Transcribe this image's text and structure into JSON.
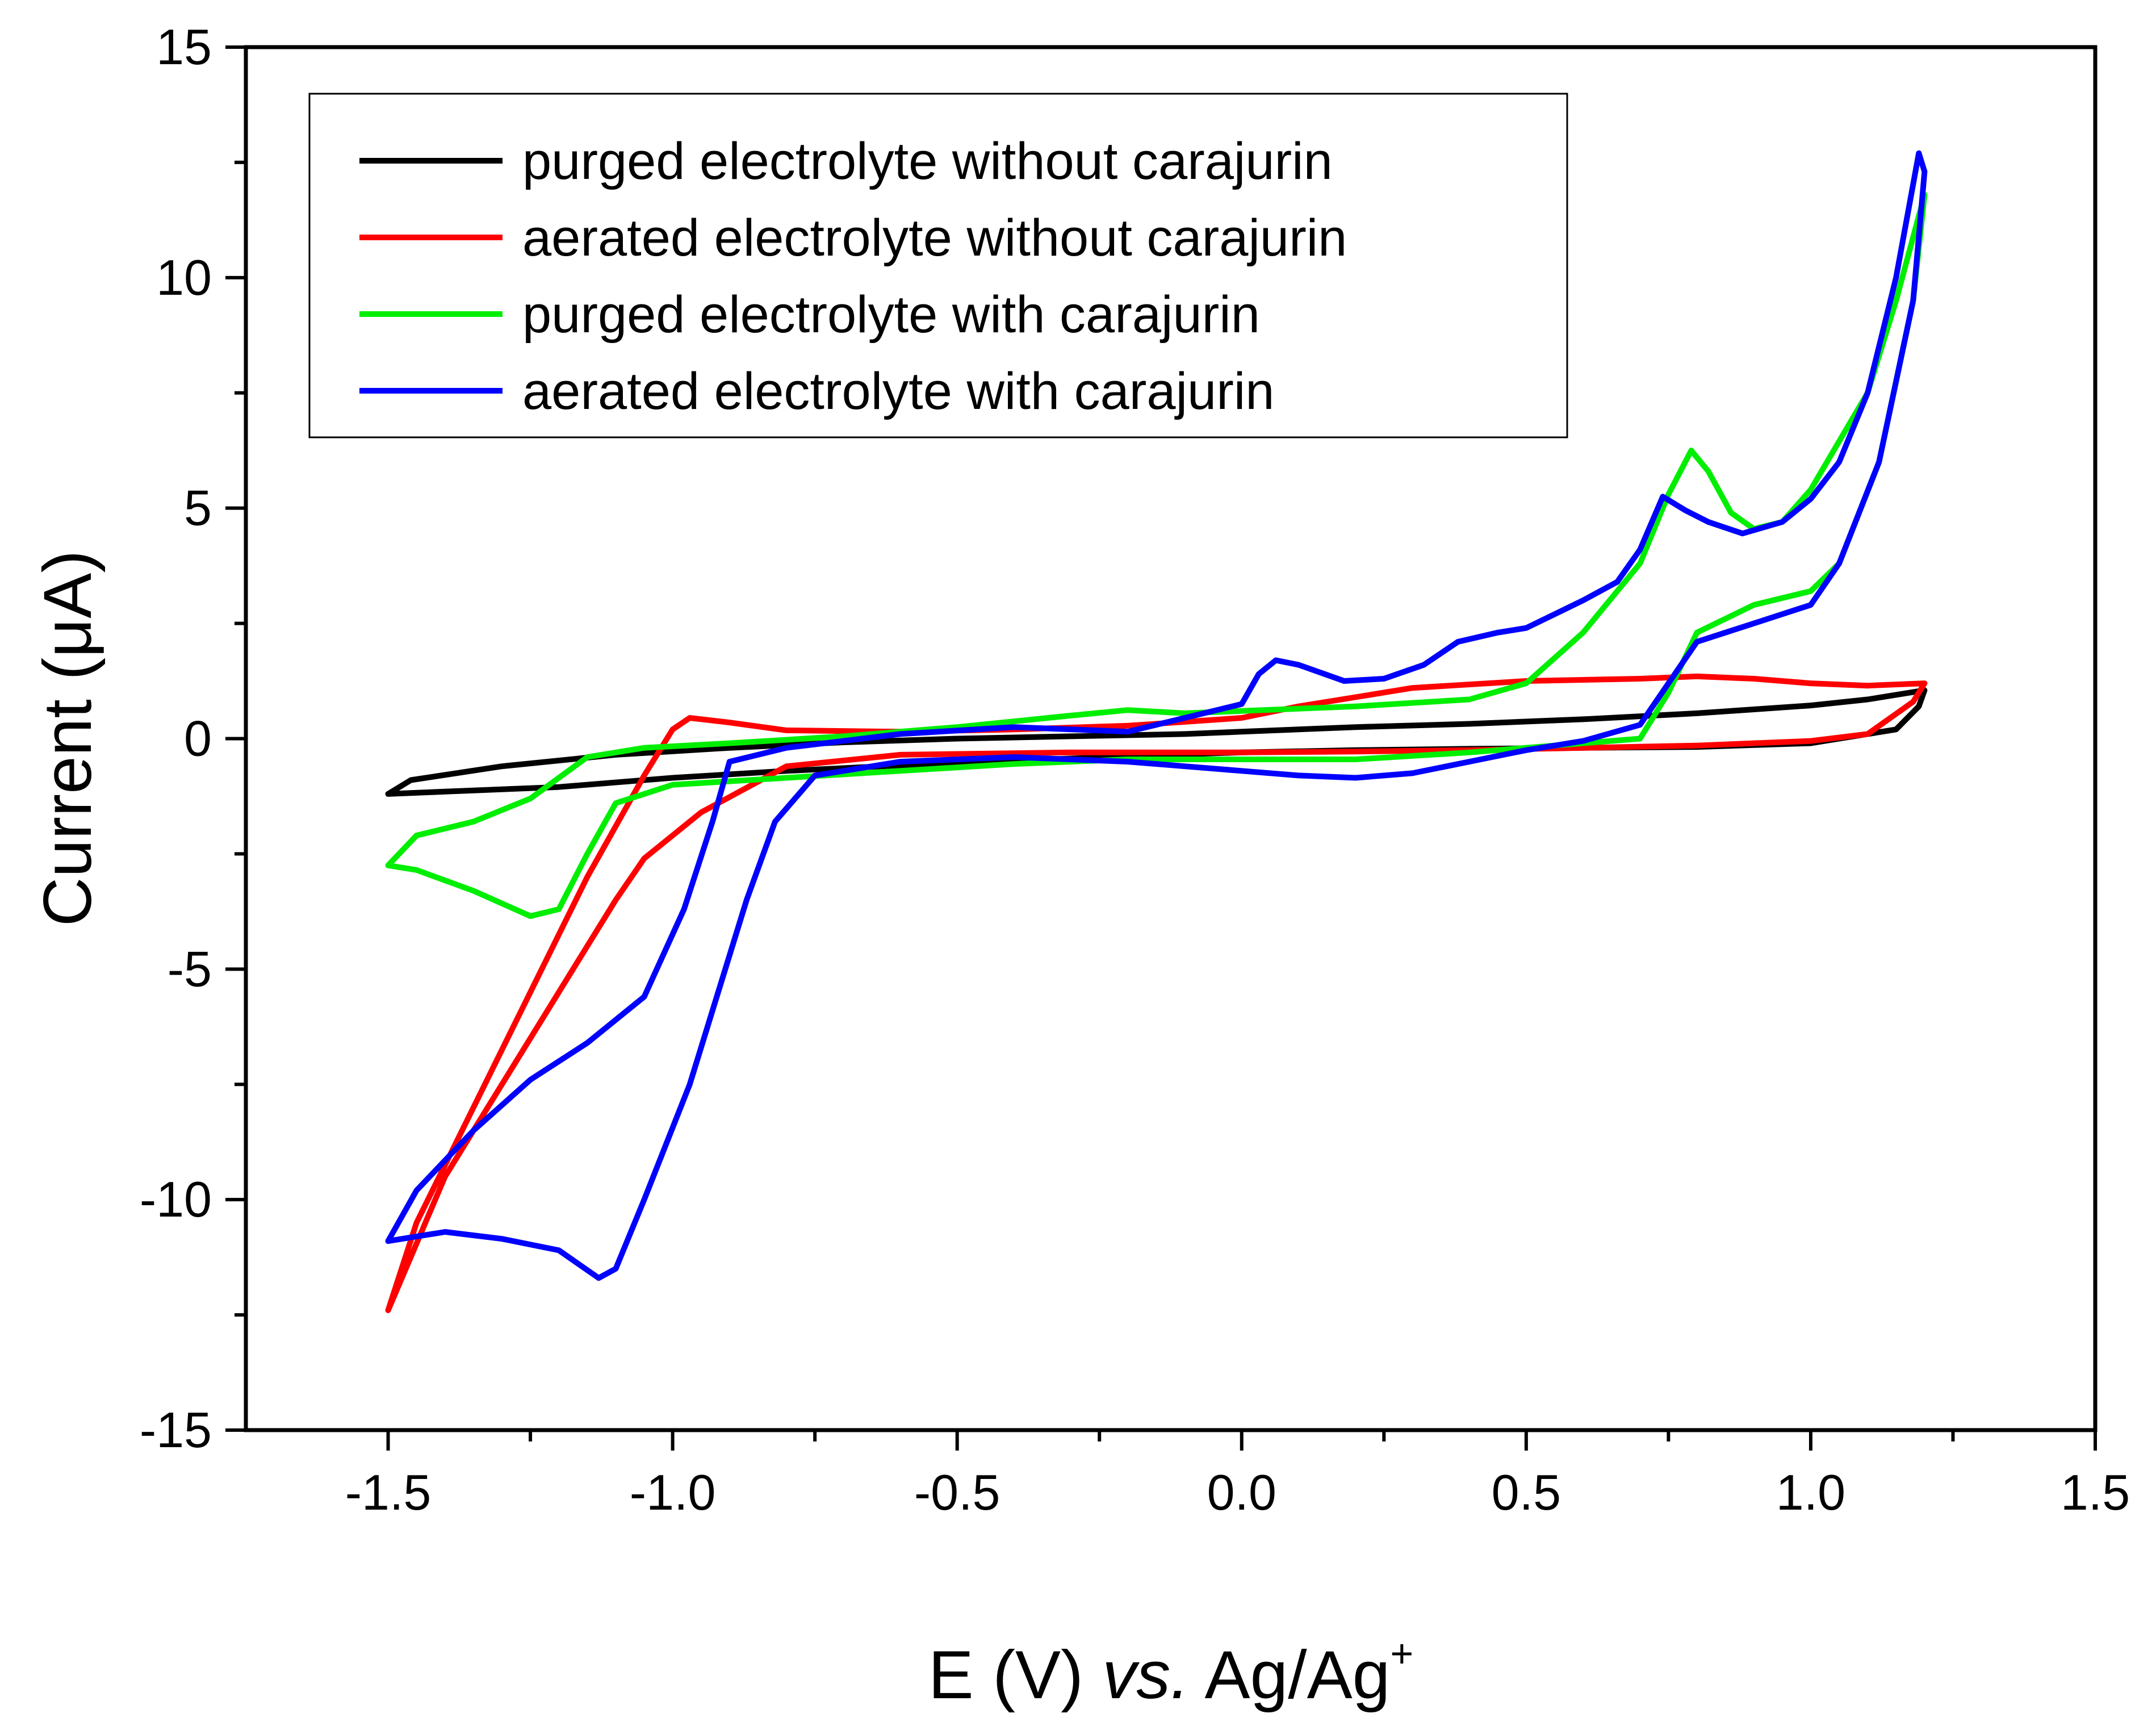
{
  "chart_data": {
    "type": "line",
    "xlabel": {
      "main": "E (V) ",
      "italic": "vs.",
      "tail": " Ag/Ag",
      "sup": "+"
    },
    "ylabel": "Current (μA)",
    "xlim": [
      -1.75,
      1.5
    ],
    "ylim": [
      -15,
      15
    ],
    "x_ticks": [
      -1.5,
      -1.0,
      -0.5,
      0.0,
      0.5,
      1.0,
      1.5
    ],
    "x_tick_labels": [
      "-1.5",
      "-1.0",
      "-0.5",
      "0.0",
      "0.5",
      "1.0",
      "1.5"
    ],
    "y_ticks": [
      -15,
      -10,
      -5,
      0,
      5,
      10,
      15
    ],
    "y_tick_labels": [
      "-15",
      "-10",
      "-5",
      "0",
      "5",
      "10",
      "15"
    ],
    "x_minor_step": 0.25,
    "y_minor_step": 2.5,
    "grid": false,
    "legend_position": "top-left",
    "series": [
      {
        "name": "purged electrolyte without carajurin",
        "color": "#000000",
        "points": [
          [
            0.0,
            0.15
          ],
          [
            0.2,
            0.25
          ],
          [
            0.4,
            0.32
          ],
          [
            0.6,
            0.42
          ],
          [
            0.8,
            0.55
          ],
          [
            1.0,
            0.72
          ],
          [
            1.1,
            0.85
          ],
          [
            1.2,
            1.05
          ],
          [
            1.19,
            0.7
          ],
          [
            1.15,
            0.2
          ],
          [
            1.0,
            -0.1
          ],
          [
            0.8,
            -0.18
          ],
          [
            0.6,
            -0.2
          ],
          [
            0.4,
            -0.22
          ],
          [
            0.2,
            -0.25
          ],
          [
            0.0,
            -0.3
          ],
          [
            -0.2,
            -0.38
          ],
          [
            -0.4,
            -0.48
          ],
          [
            -0.6,
            -0.58
          ],
          [
            -0.8,
            -0.7
          ],
          [
            -1.0,
            -0.85
          ],
          [
            -1.2,
            -1.05
          ],
          [
            -1.4,
            -1.15
          ],
          [
            -1.5,
            -1.2
          ],
          [
            -1.46,
            -0.9
          ],
          [
            -1.3,
            -0.6
          ],
          [
            -1.1,
            -0.35
          ],
          [
            -0.9,
            -0.2
          ],
          [
            -0.7,
            -0.08
          ],
          [
            -0.5,
            0.0
          ],
          [
            -0.3,
            0.05
          ],
          [
            -0.1,
            0.1
          ],
          [
            0.0,
            0.15
          ]
        ]
      },
      {
        "name": "aerated electrolyte without carajurin",
        "color": "#ff0000",
        "points": [
          [
            0.0,
            0.45
          ],
          [
            0.1,
            0.7
          ],
          [
            0.2,
            0.9
          ],
          [
            0.3,
            1.1
          ],
          [
            0.5,
            1.25
          ],
          [
            0.7,
            1.3
          ],
          [
            0.8,
            1.35
          ],
          [
            0.9,
            1.3
          ],
          [
            1.0,
            1.2
          ],
          [
            1.1,
            1.15
          ],
          [
            1.2,
            1.2
          ],
          [
            1.18,
            0.8
          ],
          [
            1.1,
            0.1
          ],
          [
            1.0,
            -0.05
          ],
          [
            0.8,
            -0.15
          ],
          [
            0.6,
            -0.2
          ],
          [
            0.4,
            -0.25
          ],
          [
            0.2,
            -0.28
          ],
          [
            0.0,
            -0.3
          ],
          [
            -0.3,
            -0.3
          ],
          [
            -0.6,
            -0.35
          ],
          [
            -0.8,
            -0.6
          ],
          [
            -0.95,
            -1.6
          ],
          [
            -1.05,
            -2.6
          ],
          [
            -1.1,
            -3.5
          ],
          [
            -1.2,
            -5.5
          ],
          [
            -1.3,
            -7.5
          ],
          [
            -1.4,
            -9.5
          ],
          [
            -1.5,
            -12.4
          ],
          [
            -1.45,
            -10.5
          ],
          [
            -1.35,
            -8.0
          ],
          [
            -1.25,
            -5.5
          ],
          [
            -1.15,
            -3.0
          ],
          [
            -1.05,
            -0.8
          ],
          [
            -1.0,
            0.2
          ],
          [
            -0.97,
            0.45
          ],
          [
            -0.9,
            0.35
          ],
          [
            -0.8,
            0.18
          ],
          [
            -0.6,
            0.15
          ],
          [
            -0.4,
            0.2
          ],
          [
            -0.2,
            0.28
          ],
          [
            0.0,
            0.45
          ]
        ]
      },
      {
        "name": "purged electrolyte with carajurin",
        "color": "#00ee00",
        "points": [
          [
            0.0,
            0.6
          ],
          [
            0.2,
            0.7
          ],
          [
            0.4,
            0.85
          ],
          [
            0.5,
            1.2
          ],
          [
            0.6,
            2.3
          ],
          [
            0.7,
            3.8
          ],
          [
            0.75,
            5.3
          ],
          [
            0.79,
            6.25
          ],
          [
            0.82,
            5.8
          ],
          [
            0.86,
            4.9
          ],
          [
            0.9,
            4.55
          ],
          [
            0.95,
            4.7
          ],
          [
            1.0,
            5.4
          ],
          [
            1.1,
            7.5
          ],
          [
            1.15,
            9.5
          ],
          [
            1.2,
            11.8
          ],
          [
            1.18,
            9.5
          ],
          [
            1.12,
            6.0
          ],
          [
            1.05,
            3.8
          ],
          [
            1.0,
            3.2
          ],
          [
            0.9,
            2.9
          ],
          [
            0.8,
            2.3
          ],
          [
            0.75,
            1.0
          ],
          [
            0.7,
            0.0
          ],
          [
            0.6,
            -0.1
          ],
          [
            0.4,
            -0.3
          ],
          [
            0.2,
            -0.45
          ],
          [
            0.0,
            -0.45
          ],
          [
            -0.2,
            -0.45
          ],
          [
            -0.4,
            -0.55
          ],
          [
            -0.6,
            -0.7
          ],
          [
            -0.8,
            -0.85
          ],
          [
            -1.0,
            -1.0
          ],
          [
            -1.1,
            -1.4
          ],
          [
            -1.15,
            -2.5
          ],
          [
            -1.2,
            -3.7
          ],
          [
            -1.25,
            -3.85
          ],
          [
            -1.35,
            -3.3
          ],
          [
            -1.45,
            -2.85
          ],
          [
            -1.5,
            -2.75
          ],
          [
            -1.45,
            -2.1
          ],
          [
            -1.35,
            -1.8
          ],
          [
            -1.25,
            -1.3
          ],
          [
            -1.15,
            -0.4
          ],
          [
            -1.05,
            -0.2
          ],
          [
            -0.9,
            -0.1
          ],
          [
            -0.7,
            0.05
          ],
          [
            -0.5,
            0.25
          ],
          [
            -0.3,
            0.5
          ],
          [
            -0.2,
            0.62
          ],
          [
            -0.1,
            0.55
          ],
          [
            0.0,
            0.6
          ]
        ]
      },
      {
        "name": "aerated electrolyte with carajurin",
        "color": "#0000ff",
        "points": [
          [
            0.0,
            0.75
          ],
          [
            0.03,
            1.4
          ],
          [
            0.06,
            1.7
          ],
          [
            0.1,
            1.6
          ],
          [
            0.18,
            1.25
          ],
          [
            0.25,
            1.3
          ],
          [
            0.32,
            1.6
          ],
          [
            0.38,
            2.1
          ],
          [
            0.45,
            2.3
          ],
          [
            0.5,
            2.4
          ],
          [
            0.55,
            2.7
          ],
          [
            0.6,
            3.0
          ],
          [
            0.66,
            3.4
          ],
          [
            0.7,
            4.1
          ],
          [
            0.74,
            5.25
          ],
          [
            0.78,
            4.95
          ],
          [
            0.82,
            4.7
          ],
          [
            0.88,
            4.45
          ],
          [
            0.95,
            4.7
          ],
          [
            1.0,
            5.2
          ],
          [
            1.05,
            6.0
          ],
          [
            1.1,
            7.5
          ],
          [
            1.15,
            10.0
          ],
          [
            1.19,
            12.7
          ],
          [
            1.2,
            12.3
          ],
          [
            1.18,
            9.5
          ],
          [
            1.12,
            6.0
          ],
          [
            1.05,
            3.8
          ],
          [
            1.0,
            2.9
          ],
          [
            0.9,
            2.5
          ],
          [
            0.8,
            2.1
          ],
          [
            0.75,
            1.2
          ],
          [
            0.7,
            0.3
          ],
          [
            0.6,
            -0.05
          ],
          [
            0.5,
            -0.25
          ],
          [
            0.4,
            -0.5
          ],
          [
            0.3,
            -0.75
          ],
          [
            0.2,
            -0.85
          ],
          [
            0.1,
            -0.8
          ],
          [
            0.0,
            -0.7
          ],
          [
            -0.2,
            -0.5
          ],
          [
            -0.4,
            -0.4
          ],
          [
            -0.6,
            -0.5
          ],
          [
            -0.75,
            -0.8
          ],
          [
            -0.82,
            -1.8
          ],
          [
            -0.87,
            -3.5
          ],
          [
            -0.92,
            -5.5
          ],
          [
            -0.97,
            -7.5
          ],
          [
            -1.05,
            -10.0
          ],
          [
            -1.1,
            -11.5
          ],
          [
            -1.13,
            -11.7
          ],
          [
            -1.2,
            -11.1
          ],
          [
            -1.3,
            -10.85
          ],
          [
            -1.4,
            -10.7
          ],
          [
            -1.5,
            -10.9
          ],
          [
            -1.45,
            -9.8
          ],
          [
            -1.35,
            -8.5
          ],
          [
            -1.25,
            -7.4
          ],
          [
            -1.15,
            -6.6
          ],
          [
            -1.05,
            -5.6
          ],
          [
            -0.98,
            -3.7
          ],
          [
            -0.93,
            -1.8
          ],
          [
            -0.9,
            -0.5
          ],
          [
            -0.8,
            -0.2
          ],
          [
            -0.6,
            0.1
          ],
          [
            -0.4,
            0.25
          ],
          [
            -0.2,
            0.15
          ],
          [
            0.0,
            0.75
          ]
        ]
      }
    ]
  }
}
